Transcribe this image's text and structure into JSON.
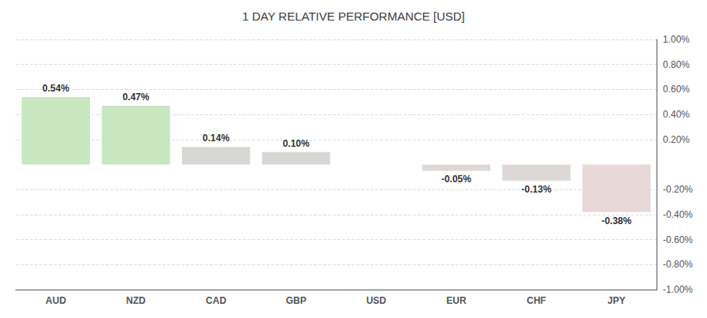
{
  "chart_data": {
    "type": "bar",
    "title": "1 DAY RELATIVE PERFORMANCE [USD]",
    "categories": [
      "AUD",
      "NZD",
      "CAD",
      "GBP",
      "USD",
      "EUR",
      "CHF",
      "JPY"
    ],
    "values": [
      0.54,
      0.47,
      0.14,
      0.1,
      0.0,
      -0.05,
      -0.13,
      -0.38
    ],
    "value_labels": [
      "0.54%",
      "0.47%",
      "0.14%",
      "0.10%",
      null,
      "-0.05%",
      "-0.13%",
      "-0.38%"
    ],
    "colors": [
      "#c8e6c0",
      "#c8e6c0",
      "#d6d8d4",
      "#d6d8d4",
      "#333333",
      "#ddd8d6",
      "#ddd8d6",
      "#e8d8d8"
    ],
    "ylim": [
      -1.0,
      1.0
    ],
    "yticks": [
      {
        "value": -1.0,
        "label": "-1.00%"
      },
      {
        "value": -0.8,
        "label": "-0.80%"
      },
      {
        "value": -0.6,
        "label": "-0.60%"
      },
      {
        "value": -0.4,
        "label": "-0.40%"
      },
      {
        "value": -0.2,
        "label": "-0.20%"
      },
      {
        "value": 0.2,
        "label": "0.20%"
      },
      {
        "value": 0.4,
        "label": "0.40%"
      },
      {
        "value": 0.6,
        "label": "0.60%"
      },
      {
        "value": 0.8,
        "label": "0.80%"
      },
      {
        "value": 1.0,
        "label": "1.00%"
      }
    ],
    "grid": true,
    "data_labels": true
  }
}
